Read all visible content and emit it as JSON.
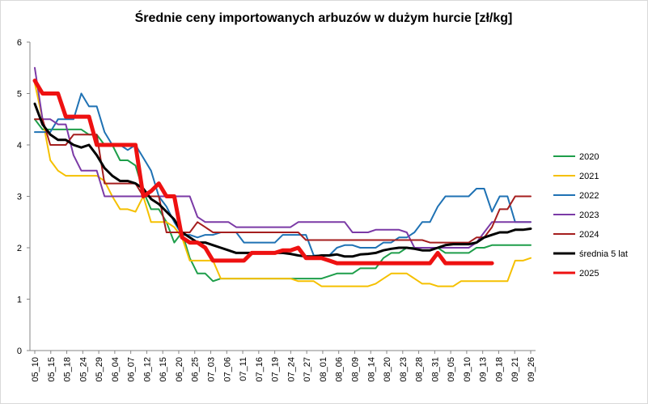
{
  "chart_data": {
    "type": "line",
    "title": "Średnie ceny importowanych arbuzów w dużym hurcie [zł/kg]",
    "xlabel": "",
    "ylabel": "",
    "ylim": [
      0,
      6
    ],
    "yticks": [
      0,
      1,
      2,
      3,
      4,
      5,
      6
    ],
    "grid": false,
    "legend": "right",
    "x": [
      "05_10",
      "05_13",
      "05_15",
      "05_17",
      "05_18",
      "05_20",
      "05_22",
      "05_24",
      "05_27",
      "05_29",
      "05_31",
      "06_04",
      "06_05",
      "06_07",
      "06_09",
      "06_12",
      "06_13",
      "06_15",
      "06_17",
      "06_20",
      "06_22",
      "06_25",
      "06_27",
      "07_03",
      "07_05",
      "07_06",
      "07_10",
      "07_11",
      "07_14",
      "07_16",
      "07_18",
      "07_19",
      "07_22",
      "07_24",
      "07_26",
      "07_27",
      "07_30",
      "08_01",
      "08_03",
      "08_06",
      "08_08",
      "08_10",
      "08_12",
      "08_14",
      "08_16",
      "08_20",
      "08_21",
      "08_23",
      "08_26",
      "08_28",
      "08_30",
      "08_31",
      "09_03",
      "09_05",
      "09_07",
      "09_10",
      "09_12",
      "09_13",
      "09_17",
      "09_18",
      "09_20",
      "09_21",
      "09_24",
      "09_26",
      "09_28"
    ],
    "xticks": [
      "05_10",
      "05_15",
      "05_18",
      "05_24",
      "05_29",
      "06_04",
      "06_07",
      "06_12",
      "06_15",
      "06_20",
      "06_25",
      "07_03",
      "07_06",
      "07_11",
      "07_16",
      "07_19",
      "07_24",
      "07_27",
      "08_01",
      "08_06",
      "08_09",
      "08_14",
      "08_20",
      "08_23",
      "08_28",
      "08_31",
      "09_05",
      "09_10",
      "09_13",
      "09_18",
      "09_21",
      "09_26"
    ],
    "series": [
      {
        "name": "2020",
        "color": "#1e9e4a",
        "width": 2,
        "values": [
          4.5,
          4.3,
          4.3,
          4.3,
          4.3,
          4.3,
          4.3,
          4.2,
          4.2,
          4.0,
          4.0,
          3.7,
          3.7,
          3.6,
          3.1,
          2.75,
          2.75,
          2.5,
          2.1,
          2.3,
          1.8,
          1.5,
          1.5,
          1.35,
          1.4,
          1.4,
          1.4,
          1.4,
          1.4,
          1.4,
          1.4,
          1.4,
          1.4,
          1.4,
          1.4,
          1.4,
          1.4,
          1.4,
          1.45,
          1.5,
          1.5,
          1.5,
          1.6,
          1.6,
          1.6,
          1.8,
          1.9,
          1.9,
          2.0,
          2.0,
          2.0,
          2.0,
          2.0,
          1.9,
          1.9,
          1.9,
          1.9,
          2.0,
          2.0,
          2.05,
          2.05,
          2.05,
          2.05,
          2.05,
          2.05
        ]
      },
      {
        "name": "2021",
        "color": "#f5c000",
        "width": 2,
        "values": [
          5.2,
          4.5,
          3.7,
          3.5,
          3.4,
          3.4,
          3.4,
          3.4,
          3.4,
          3.3,
          3.0,
          2.75,
          2.75,
          2.7,
          3.0,
          2.5,
          2.5,
          2.5,
          2.4,
          2.2,
          1.75,
          1.75,
          1.75,
          1.75,
          1.4,
          1.4,
          1.4,
          1.4,
          1.4,
          1.4,
          1.4,
          1.4,
          1.4,
          1.4,
          1.35,
          1.35,
          1.35,
          1.25,
          1.25,
          1.25,
          1.25,
          1.25,
          1.25,
          1.25,
          1.3,
          1.4,
          1.5,
          1.5,
          1.5,
          1.4,
          1.3,
          1.3,
          1.25,
          1.25,
          1.25,
          1.35,
          1.35,
          1.35,
          1.35,
          1.35,
          1.35,
          1.35,
          1.75,
          1.75,
          1.8
        ]
      },
      {
        "name": "2022",
        "color": "#1f72b4",
        "width": 2,
        "values": [
          4.25,
          4.25,
          4.25,
          4.5,
          4.5,
          4.5,
          5.0,
          4.75,
          4.75,
          4.25,
          4.0,
          4.0,
          3.9,
          4.0,
          3.75,
          3.5,
          3.0,
          2.8,
          2.5,
          2.25,
          2.25,
          2.2,
          2.25,
          2.25,
          2.3,
          2.3,
          2.3,
          2.1,
          2.1,
          2.1,
          2.1,
          2.1,
          2.25,
          2.25,
          2.25,
          2.25,
          1.85,
          1.85,
          1.85,
          2.0,
          2.05,
          2.05,
          2.0,
          2.0,
          2.0,
          2.1,
          2.1,
          2.2,
          2.2,
          2.3,
          2.5,
          2.5,
          2.8,
          3.0,
          3.0,
          3.0,
          3.0,
          3.15,
          3.15,
          2.7,
          3.0,
          3.0,
          2.5,
          2.5,
          2.5
        ]
      },
      {
        "name": "2023",
        "color": "#7b3aa6",
        "width": 2,
        "values": [
          5.5,
          4.5,
          4.5,
          4.4,
          4.4,
          3.8,
          3.5,
          3.5,
          3.5,
          3.0,
          3.0,
          3.0,
          3.0,
          3.0,
          3.0,
          3.0,
          3.0,
          3.0,
          3.0,
          3.0,
          3.0,
          2.6,
          2.5,
          2.5,
          2.5,
          2.5,
          2.4,
          2.4,
          2.4,
          2.4,
          2.4,
          2.4,
          2.4,
          2.4,
          2.5,
          2.5,
          2.5,
          2.5,
          2.5,
          2.5,
          2.5,
          2.3,
          2.3,
          2.3,
          2.35,
          2.35,
          2.35,
          2.35,
          2.3,
          2.0,
          2.0,
          2.0,
          2.0,
          2.0,
          2.0,
          2.0,
          2.0,
          2.1,
          2.3,
          2.5,
          2.5,
          2.5,
          2.5,
          2.5,
          2.5
        ]
      },
      {
        "name": "2024",
        "color": "#a51e1e",
        "width": 2,
        "values": [
          4.5,
          4.5,
          4.0,
          4.0,
          4.0,
          4.2,
          4.2,
          4.2,
          4.2,
          3.25,
          3.25,
          3.25,
          3.25,
          3.25,
          3.0,
          3.0,
          3.0,
          2.3,
          2.3,
          2.3,
          2.3,
          2.5,
          2.4,
          2.3,
          2.3,
          2.3,
          2.3,
          2.3,
          2.3,
          2.3,
          2.3,
          2.3,
          2.3,
          2.3,
          2.3,
          2.15,
          2.15,
          2.15,
          2.15,
          2.15,
          2.15,
          2.15,
          2.15,
          2.15,
          2.15,
          2.15,
          2.15,
          2.15,
          2.15,
          2.15,
          2.15,
          2.1,
          2.1,
          2.1,
          2.1,
          2.1,
          2.1,
          2.2,
          2.2,
          2.4,
          2.75,
          2.75,
          3.0,
          3.0,
          3.0
        ]
      },
      {
        "name": "średnia 5 lat",
        "color": "#000000",
        "width": 3,
        "values": [
          4.8,
          4.4,
          4.2,
          4.1,
          4.1,
          4.0,
          3.95,
          4.0,
          3.8,
          3.55,
          3.4,
          3.3,
          3.3,
          3.25,
          3.15,
          2.95,
          2.85,
          2.7,
          2.55,
          2.3,
          2.2,
          2.1,
          2.1,
          2.05,
          2.0,
          1.95,
          1.9,
          1.9,
          1.9,
          1.9,
          1.9,
          1.9,
          1.9,
          1.88,
          1.85,
          1.83,
          1.83,
          1.85,
          1.85,
          1.87,
          1.83,
          1.83,
          1.87,
          1.88,
          1.9,
          1.95,
          1.98,
          2.0,
          2.0,
          1.98,
          1.95,
          1.95,
          2.0,
          2.05,
          2.07,
          2.07,
          2.07,
          2.1,
          2.2,
          2.25,
          2.3,
          2.3,
          2.35,
          2.35,
          2.37
        ]
      },
      {
        "name": "2025",
        "color": "#ee1111",
        "width": 5,
        "values": [
          5.25,
          5.0,
          5.0,
          5.0,
          4.55,
          4.55,
          4.55,
          4.55,
          4.0,
          4.0,
          4.0,
          4.0,
          4.0,
          4.0,
          3.0,
          3.1,
          3.25,
          3.0,
          3.0,
          2.2,
          2.1,
          2.1,
          2.0,
          1.75,
          1.75,
          1.75,
          1.75,
          1.75,
          1.9,
          1.9,
          1.9,
          1.9,
          1.95,
          1.95,
          2.0,
          1.8,
          1.8,
          1.8,
          1.75,
          1.7,
          1.7,
          1.7,
          1.7,
          1.7,
          1.7,
          1.7,
          1.7,
          1.7,
          1.7,
          1.7,
          1.7,
          1.7,
          1.9,
          1.7,
          1.7,
          1.7,
          1.7,
          1.7,
          1.7,
          1.7,
          null,
          null,
          null,
          null,
          null
        ]
      }
    ]
  }
}
